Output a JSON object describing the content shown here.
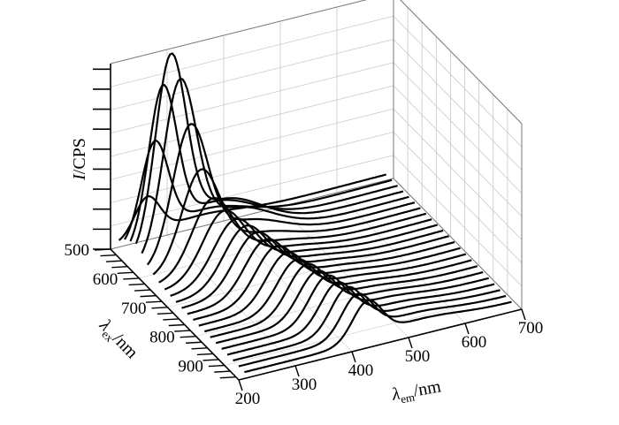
{
  "chart_data": {
    "type": "3d-line-waterfall",
    "title": "",
    "zlabel": {
      "symbol": "I",
      "unit": "/CPS"
    },
    "xlabel": {
      "symbol": "λ",
      "subscript": "em",
      "unit": "/nm"
    },
    "ylabel": {
      "symbol": "λ",
      "subscript": "ex",
      "unit": "/nm"
    },
    "x_ticks": [
      "200",
      "300",
      "400",
      "500",
      "600",
      "700"
    ],
    "y_ticks": [
      "500",
      "600",
      "700",
      "800",
      "900"
    ],
    "xlim": [
      200,
      700
    ],
    "ylim": [
      500,
      950
    ],
    "grid": true,
    "line_color": "#000000",
    "series": [
      {
        "ex": 500,
        "peak_x": 265,
        "amp": 0.2,
        "sigma": 22
      },
      {
        "ex": 520,
        "peak_x": 268,
        "amp": 0.5,
        "sigma": 24
      },
      {
        "ex": 540,
        "peak_x": 272,
        "amp": 0.8,
        "sigma": 25
      },
      {
        "ex": 560,
        "peak_x": 276,
        "amp": 0.98,
        "sigma": 27
      },
      {
        "ex": 580,
        "peak_x": 282,
        "amp": 0.88,
        "sigma": 29
      },
      {
        "ex": 600,
        "peak_x": 290,
        "amp": 0.68,
        "sigma": 31
      },
      {
        "ex": 620,
        "peak_x": 298,
        "amp": 0.48,
        "sigma": 33
      },
      {
        "ex": 640,
        "peak_x": 308,
        "amp": 0.36,
        "sigma": 35
      },
      {
        "ex": 660,
        "peak_x": 318,
        "amp": 0.32,
        "sigma": 36
      },
      {
        "ex": 680,
        "peak_x": 328,
        "amp": 0.3,
        "sigma": 37
      },
      {
        "ex": 700,
        "peak_x": 336,
        "amp": 0.29,
        "sigma": 37
      },
      {
        "ex": 720,
        "peak_x": 344,
        "amp": 0.28,
        "sigma": 37
      },
      {
        "ex": 740,
        "peak_x": 352,
        "amp": 0.27,
        "sigma": 36
      },
      {
        "ex": 760,
        "peak_x": 360,
        "amp": 0.26,
        "sigma": 35
      },
      {
        "ex": 780,
        "peak_x": 368,
        "amp": 0.25,
        "sigma": 34
      },
      {
        "ex": 800,
        "peak_x": 376,
        "amp": 0.24,
        "sigma": 33
      },
      {
        "ex": 820,
        "peak_x": 384,
        "amp": 0.24,
        "sigma": 32
      },
      {
        "ex": 840,
        "peak_x": 392,
        "amp": 0.23,
        "sigma": 31
      },
      {
        "ex": 860,
        "peak_x": 400,
        "amp": 0.23,
        "sigma": 30
      },
      {
        "ex": 880,
        "peak_x": 408,
        "amp": 0.22,
        "sigma": 29
      },
      {
        "ex": 900,
        "peak_x": 416,
        "amp": 0.22,
        "sigma": 28
      },
      {
        "ex": 920,
        "peak_x": 424,
        "amp": 0.21,
        "sigma": 27
      },
      {
        "ex": 940,
        "peak_x": 432,
        "amp": 0.2,
        "sigma": 26
      }
    ]
  }
}
